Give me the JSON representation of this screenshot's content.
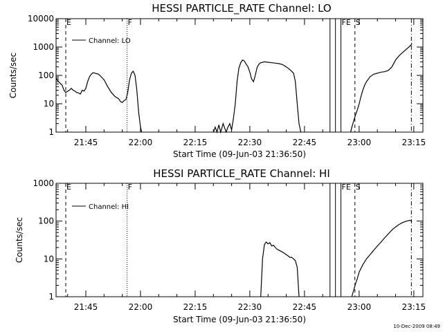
{
  "footer_timestamp": "10-Dec-2009 08:49",
  "chart_data": [
    {
      "type": "line",
      "title": "HESSI PARTICLE_RATE Channel: LO",
      "xlabel": "Start Time (09-Jun-03 21:36:50)",
      "ylabel": "Counts/sec",
      "yscale": "log",
      "xlim": [
        "21:36:50",
        "23:17:30"
      ],
      "ylim": [
        1,
        10000
      ],
      "x_ticks": [
        "21:45",
        "22:00",
        "22:15",
        "22:30",
        "22:45",
        "23:00",
        "23:15"
      ],
      "y_ticks": [
        "1",
        "10",
        "100",
        "1000",
        "10000"
      ],
      "legend": "Channel: LO",
      "legend_position": "top-left",
      "markers": [
        {
          "label": "E",
          "time": "21:39:30",
          "style": "dashed"
        },
        {
          "label": "F",
          "time": "21:56:20",
          "style": "dotted"
        },
        {
          "label": "",
          "time": "22:52:00",
          "style": "solid"
        },
        {
          "label": "",
          "time": "22:53:30",
          "style": "solid"
        },
        {
          "label": "FE",
          "time": "22:55:00",
          "style": "solid"
        },
        {
          "label": "S",
          "time": "22:58:50",
          "style": "dashed"
        },
        {
          "label": "",
          "time": "23:14:20",
          "style": "dashdot"
        }
      ],
      "series": [
        {
          "segments": [
            [
              [
                "21:36:50",
                80
              ],
              [
                "21:37:30",
                60
              ],
              [
                "21:38:30",
                45
              ],
              [
                "21:39:00",
                30
              ],
              [
                "21:39:30",
                25
              ],
              [
                "21:40:30",
                30
              ],
              [
                "21:41:00",
                35
              ],
              [
                "21:41:30",
                30
              ],
              [
                "21:42:00",
                28
              ],
              [
                "21:42:30",
                25
              ],
              [
                "21:43:00",
                24
              ],
              [
                "21:43:30",
                22
              ],
              [
                "21:44:00",
                30
              ],
              [
                "21:44:30",
                28
              ],
              [
                "21:45:00",
                35
              ],
              [
                "21:45:30",
                60
              ],
              [
                "21:46:00",
                90
              ],
              [
                "21:46:30",
                110
              ],
              [
                "21:47:00",
                125
              ],
              [
                "21:47:30",
                120
              ],
              [
                "21:48:00",
                115
              ],
              [
                "21:48:30",
                110
              ],
              [
                "21:49:00",
                95
              ],
              [
                "21:50:00",
                70
              ],
              [
                "21:51:00",
                40
              ],
              [
                "21:52:00",
                25
              ],
              [
                "21:53:00",
                18
              ],
              [
                "21:54:00",
                15
              ],
              [
                "21:54:30",
                12
              ],
              [
                "21:55:00",
                11
              ],
              [
                "21:55:30",
                13
              ],
              [
                "21:56:00",
                14
              ],
              [
                "21:56:30",
                25
              ],
              [
                "21:57:00",
                70
              ],
              [
                "21:57:30",
                120
              ],
              [
                "21:58:00",
                140
              ],
              [
                "21:58:30",
                100
              ],
              [
                "21:59:00",
                30
              ],
              [
                "21:59:30",
                5
              ],
              [
                "22:00:00",
                1.5
              ],
              [
                "22:00:20",
                1
              ]
            ],
            [
              [
                "22:20:00",
                1
              ],
              [
                "22:20:30",
                1.5
              ],
              [
                "22:21:00",
                1
              ],
              [
                "22:21:30",
                1.8
              ],
              [
                "22:22:00",
                1
              ],
              [
                "22:22:40",
                2
              ],
              [
                "22:23:30",
                1
              ],
              [
                "22:24:00",
                1.5
              ],
              [
                "22:24:30",
                2
              ],
              [
                "22:25:00",
                1.2
              ],
              [
                "22:25:30",
                3
              ],
              [
                "22:26:00",
                10
              ],
              [
                "22:26:30",
                60
              ],
              [
                "22:27:00",
                180
              ],
              [
                "22:27:30",
                280
              ],
              [
                "22:28:00",
                350
              ],
              [
                "22:28:30",
                320
              ],
              [
                "22:29:00",
                250
              ],
              [
                "22:29:30",
                200
              ],
              [
                "22:30:00",
                130
              ],
              [
                "22:30:30",
                75
              ],
              [
                "22:31:00",
                60
              ],
              [
                "22:31:30",
                100
              ],
              [
                "22:32:00",
                190
              ],
              [
                "22:32:30",
                250
              ],
              [
                "22:33:00",
                280
              ],
              [
                "22:34:00",
                300
              ],
              [
                "22:35:00",
                290
              ],
              [
                "22:36:00",
                280
              ],
              [
                "22:37:00",
                270
              ],
              [
                "22:38:00",
                260
              ],
              [
                "22:39:00",
                240
              ],
              [
                "22:40:00",
                200
              ],
              [
                "22:41:00",
                160
              ],
              [
                "22:42:00",
                120
              ],
              [
                "22:42:30",
                60
              ],
              [
                "22:43:00",
                10
              ],
              [
                "22:43:30",
                2
              ],
              [
                "22:44:00",
                1
              ]
            ],
            [
              [
                "22:57:40",
                1
              ],
              [
                "22:58:00",
                1.5
              ],
              [
                "22:58:30",
                2.5
              ],
              [
                "22:59:00",
                4
              ],
              [
                "22:59:30",
                6
              ],
              [
                "23:00:00",
                10
              ],
              [
                "23:00:30",
                18
              ],
              [
                "23:01:00",
                30
              ],
              [
                "23:01:30",
                45
              ],
              [
                "23:02:00",
                60
              ],
              [
                "23:03:00",
                90
              ],
              [
                "23:04:00",
                110
              ],
              [
                "23:05:00",
                120
              ],
              [
                "23:06:00",
                130
              ],
              [
                "23:07:00",
                135
              ],
              [
                "23:08:00",
                150
              ],
              [
                "23:09:00",
                200
              ],
              [
                "23:10:00",
                350
              ],
              [
                "23:11:00",
                500
              ],
              [
                "23:12:00",
                650
              ],
              [
                "23:13:00",
                850
              ],
              [
                "23:14:00",
                1100
              ],
              [
                "23:14:30",
                1300
              ]
            ]
          ]
        }
      ]
    },
    {
      "type": "line",
      "title": "HESSI PARTICLE_RATE Channel: HI",
      "xlabel": "Start Time (09-Jun-03 21:36:50)",
      "ylabel": "Counts/sec",
      "yscale": "log",
      "xlim": [
        "21:36:50",
        "23:17:30"
      ],
      "ylim": [
        1,
        1000
      ],
      "x_ticks": [
        "21:45",
        "22:00",
        "22:15",
        "22:30",
        "22:45",
        "23:00",
        "23:15"
      ],
      "y_ticks": [
        "1",
        "10",
        "100",
        "1000"
      ],
      "legend": "Channel: HI",
      "legend_position": "top-left",
      "markers": [
        {
          "label": "E",
          "time": "21:39:30",
          "style": "dashed"
        },
        {
          "label": "F",
          "time": "21:56:20",
          "style": "dotted"
        },
        {
          "label": "",
          "time": "22:52:00",
          "style": "solid"
        },
        {
          "label": "",
          "time": "22:53:30",
          "style": "solid"
        },
        {
          "label": "FE",
          "time": "22:55:00",
          "style": "solid"
        },
        {
          "label": "S",
          "time": "22:58:50",
          "style": "dashed"
        },
        {
          "label": "",
          "time": "23:14:20",
          "style": "dashdot"
        }
      ],
      "series": [
        {
          "segments": [
            [
              [
                "22:33:00",
                1
              ],
              [
                "22:33:30",
                10
              ],
              [
                "22:34:00",
                24
              ],
              [
                "22:34:30",
                28
              ],
              [
                "22:35:00",
                25
              ],
              [
                "22:35:30",
                27
              ],
              [
                "22:36:00",
                22
              ],
              [
                "22:36:30",
                23
              ],
              [
                "22:37:00",
                20
              ],
              [
                "22:37:30",
                18
              ],
              [
                "22:38:00",
                17
              ],
              [
                "22:38:30",
                16
              ],
              [
                "22:39:00",
                15
              ],
              [
                "22:39:30",
                14
              ],
              [
                "22:40:00",
                13
              ],
              [
                "22:40:30",
                12
              ],
              [
                "22:41:00",
                11
              ],
              [
                "22:41:30",
                11
              ],
              [
                "22:42:00",
                10
              ],
              [
                "22:42:30",
                9
              ],
              [
                "22:43:00",
                6
              ],
              [
                "22:43:30",
                1
              ]
            ],
            [
              [
                "22:58:00",
                1
              ],
              [
                "22:58:30",
                1.5
              ],
              [
                "22:59:00",
                2.2
              ],
              [
                "22:59:30",
                3
              ],
              [
                "23:00:00",
                4.5
              ],
              [
                "23:01:00",
                7
              ],
              [
                "23:02:00",
                10
              ],
              [
                "23:03:00",
                13
              ],
              [
                "23:04:00",
                17
              ],
              [
                "23:05:00",
                22
              ],
              [
                "23:06:00",
                28
              ],
              [
                "23:07:00",
                36
              ],
              [
                "23:08:00",
                46
              ],
              [
                "23:09:00",
                58
              ],
              [
                "23:10:00",
                70
              ],
              [
                "23:11:00",
                82
              ],
              [
                "23:12:00",
                92
              ],
              [
                "23:13:00",
                100
              ],
              [
                "23:14:00",
                105
              ],
              [
                "23:14:30",
                98
              ]
            ]
          ]
        }
      ]
    }
  ]
}
